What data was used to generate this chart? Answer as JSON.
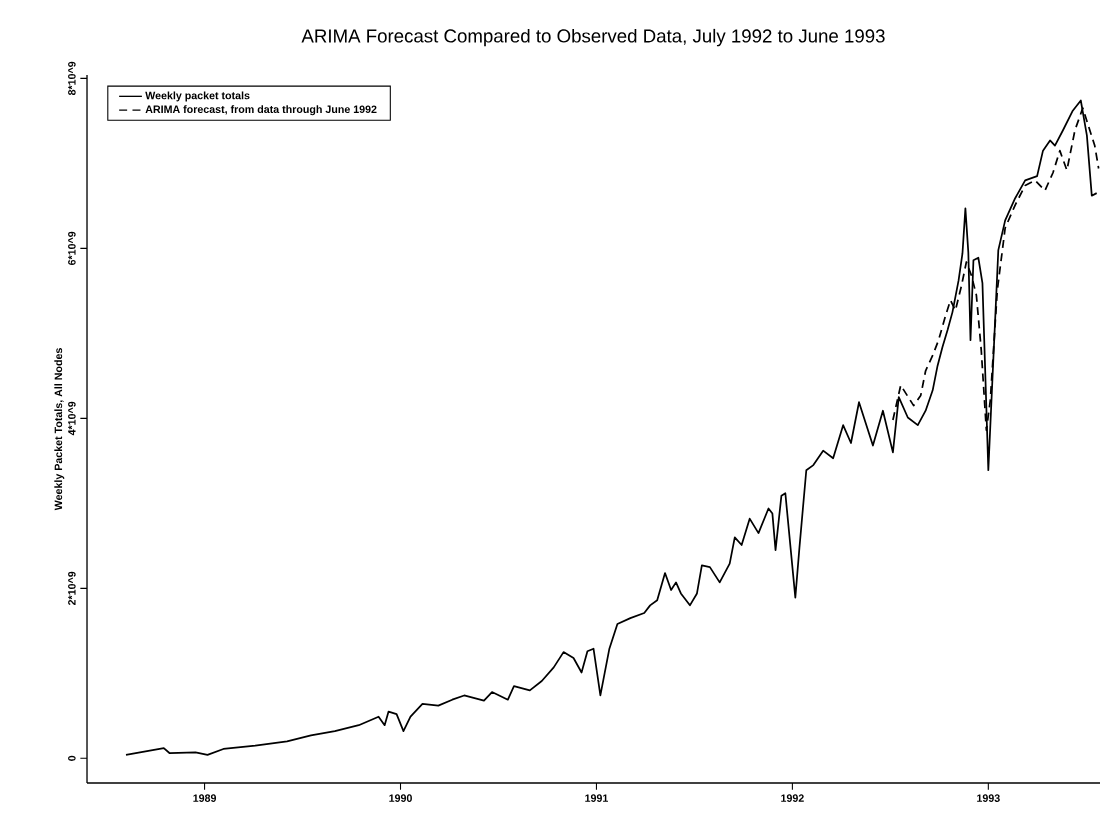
{
  "chart_data": {
    "type": "line",
    "title": "ARIMA Forecast Compared to Observed Data, July 1992 to June 1993",
    "ylabel": "Weekly Packet Totals, All Nodes",
    "xlim": [
      1988.4,
      1993.57
    ],
    "xticks": [
      1989,
      1990,
      1991,
      1992,
      1993
    ],
    "ylim": [
      -290000000,
      8040000000
    ],
    "yticks": [
      0,
      {
        "value": 2000000000,
        "label": "2*10^9"
      },
      {
        "value": 4000000000,
        "label": "4*10^9"
      },
      {
        "value": 6000000000,
        "label": "6*10^9"
      },
      {
        "value": 8000000000,
        "label": "8*10^9"
      }
    ],
    "legend": "top left",
    "grid": false,
    "series": [
      {
        "name": "Weekly packet totals",
        "color": "#000000",
        "line_style": "solid",
        "x": [
          1988.599,
          1988.792,
          1988.822,
          1988.954,
          1989.015,
          1989.096,
          1989.259,
          1989.421,
          1989.543,
          1989.665,
          1989.787,
          1989.888,
          1989.919,
          1989.939,
          1989.98,
          1990.015,
          1990.051,
          1990.112,
          1990.193,
          1990.264,
          1990.325,
          1990.426,
          1990.467,
          1990.548,
          1990.579,
          1990.66,
          1990.721,
          1990.782,
          1990.832,
          1990.883,
          1990.924,
          1990.954,
          1990.985,
          1991.02,
          1991.066,
          1991.107,
          1991.173,
          1991.244,
          1991.274,
          1991.31,
          1991.35,
          1991.381,
          1991.406,
          1991.431,
          1991.477,
          1991.513,
          1991.538,
          1991.579,
          1991.629,
          1991.68,
          1991.706,
          1991.741,
          1991.782,
          1991.827,
          1991.878,
          1991.898,
          1991.914,
          1991.944,
          1991.964,
          1992.015,
          1992.036,
          1992.071,
          1992.107,
          1992.157,
          1992.208,
          1992.259,
          1992.299,
          1992.34,
          1992.411,
          1992.462,
          1992.513,
          1992.543,
          1992.589,
          1992.64,
          1992.68,
          1992.716,
          1992.741,
          1992.766,
          1992.792,
          1992.817,
          1992.848,
          1992.868,
          1992.883,
          1992.898,
          1992.909,
          1992.924,
          1992.949,
          1992.97,
          1993.0,
          1993.02,
          1993.051,
          1993.086,
          1993.137,
          1993.188,
          1993.249,
          1993.279,
          1993.315,
          1993.34,
          1993.381,
          1993.431,
          1993.472,
          1993.503,
          1993.528,
          1993.553
        ],
        "values": [
          40000000.0,
          120000000.0,
          60000000.0,
          70000000.0,
          40000000.0,
          110000000.0,
          150000000.0,
          200000000.0,
          270000000.0,
          320000000.0,
          390000000.0,
          490000000.0,
          390000000.0,
          550000000.0,
          520000000.0,
          320000000.0,
          490000000.0,
          640000000.0,
          620000000.0,
          690000000.0,
          740000000.0,
          680000000.0,
          780000000.0,
          690000000.0,
          850000000.0,
          800000000.0,
          910000000.0,
          1070000000.0,
          1250000000.0,
          1180000000.0,
          1010000000.0,
          1260000000.0,
          1290000000.0,
          740000000.0,
          1290000000.0,
          1580000000.0,
          1650000000.0,
          1710000000.0,
          1800000000.0,
          1860000000.0,
          2180000000.0,
          1980000000.0,
          2070000000.0,
          1940000000.0,
          1800000000.0,
          1940000000.0,
          2270000000.0,
          2250000000.0,
          2070000000.0,
          2290000000.0,
          2600000000.0,
          2510000000.0,
          2820000000.0,
          2650000000.0,
          2940000000.0,
          2880000000.0,
          2450000000.0,
          3090000000.0,
          3120000000.0,
          1890000000.0,
          2480000000.0,
          3390000000.0,
          3450000000.0,
          3620000000.0,
          3530000000.0,
          3920000000.0,
          3710000000.0,
          4190000000.0,
          3680000000.0,
          4090000000.0,
          3600000000.0,
          4250000000.0,
          4010000000.0,
          3920000000.0,
          4090000000.0,
          4330000000.0,
          4620000000.0,
          4840000000.0,
          5040000000.0,
          5250000000.0,
          5620000000.0,
          5940000000.0,
          6470000000.0,
          5950000000.0,
          4920000000.0,
          5860000000.0,
          5890000000.0,
          5590000000.0,
          3390000000.0,
          4410000000.0,
          5980000000.0,
          6330000000.0,
          6590000000.0,
          6800000000.0,
          6850000000.0,
          7150000000.0,
          7270000000.0,
          7210000000.0,
          7390000000.0,
          7620000000.0,
          7740000000.0,
          7330000000.0,
          6620000000.0,
          6650000000.0
        ]
      },
      {
        "name": "ARIMA forecast, from data through June 1992",
        "color": "#000000",
        "line_style": "dashed",
        "x": [
          1992.513,
          1992.553,
          1992.594,
          1992.619,
          1992.655,
          1992.68,
          1992.716,
          1992.746,
          1992.782,
          1992.807,
          1992.832,
          1992.863,
          1992.888,
          1992.914,
          1992.939,
          1992.964,
          1992.99,
          1993.01,
          1993.046,
          1993.086,
          1993.137,
          1993.188,
          1993.239,
          1993.289,
          1993.33,
          1993.365,
          1993.401,
          1993.442,
          1993.482,
          1993.518,
          1993.543,
          1993.563
        ],
        "values": [
          3980000000.0,
          4390000000.0,
          4240000000.0,
          4150000000.0,
          4270000000.0,
          4560000000.0,
          4740000000.0,
          4920000000.0,
          5210000000.0,
          5390000000.0,
          5270000000.0,
          5560000000.0,
          5840000000.0,
          5680000000.0,
          5450000000.0,
          4800000000.0,
          3860000000.0,
          4210000000.0,
          5510000000.0,
          6240000000.0,
          6510000000.0,
          6740000000.0,
          6800000000.0,
          6680000000.0,
          6890000000.0,
          7150000000.0,
          6920000000.0,
          7390000000.0,
          7650000000.0,
          7390000000.0,
          7210000000.0,
          6940000000.0
        ]
      }
    ]
  }
}
